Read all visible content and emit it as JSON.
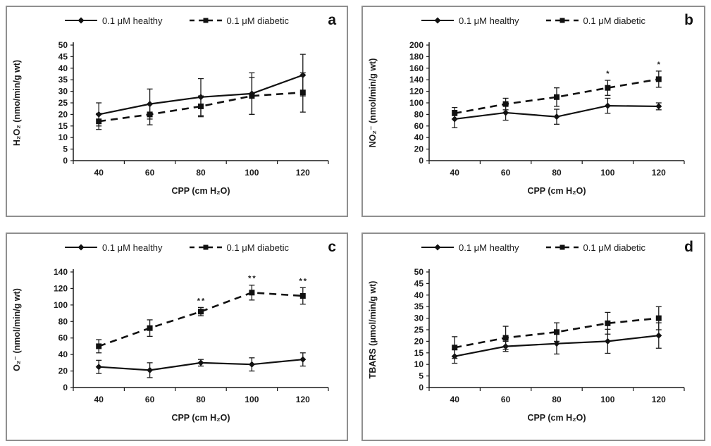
{
  "figure": {
    "legend": {
      "healthy_label": "0.1 μM healthy",
      "diabetic_label": "0.1 μM diabetic"
    },
    "line_color": "#111111",
    "border_color": "#8f8f8f"
  },
  "chart_data": [
    {
      "type": "line",
      "panel_label": "a",
      "xlabel": "CPP (cm H₂O)",
      "ylabel": "H₂O₂ (nmo/min/g wt)",
      "ylim": [
        0,
        50
      ],
      "ytick_step": 5,
      "categories": [
        40,
        60,
        80,
        100,
        120
      ],
      "legend_position": "top-center",
      "grid": false,
      "series": [
        {
          "name": "0.1 μM healthy",
          "line": "solid",
          "marker": "diamond",
          "values": [
            20,
            24.5,
            27.5,
            29,
            37
          ],
          "errors": [
            5,
            6.5,
            8,
            9,
            9
          ],
          "annotations": [
            "",
            "",
            "",
            "",
            ""
          ]
        },
        {
          "name": "0.1 μM diabetic",
          "line": "dashed",
          "marker": "square",
          "values": [
            17,
            20,
            23.5,
            28,
            29.5
          ],
          "errors": [
            3.5,
            4.5,
            4.5,
            8,
            8.5
          ],
          "annotations": [
            "",
            "",
            "",
            "",
            ""
          ]
        }
      ]
    },
    {
      "type": "line",
      "panel_label": "b",
      "xlabel": "CPP (cm H₂O)",
      "ylabel": "NO₂⁻ (nmol/min/g wt)",
      "ylim": [
        0,
        200
      ],
      "ytick_step": 20,
      "categories": [
        40,
        60,
        80,
        100,
        120
      ],
      "legend_position": "top-center",
      "grid": false,
      "series": [
        {
          "name": "0.1 μM healthy",
          "line": "solid",
          "marker": "diamond",
          "values": [
            72,
            83,
            76,
            95,
            94
          ],
          "errors": [
            15,
            13,
            13,
            13,
            6
          ],
          "annotations": [
            "",
            "",
            "",
            "",
            ""
          ]
        },
        {
          "name": "0.1 μM diabetic",
          "line": "dashed",
          "marker": "square",
          "values": [
            82,
            98,
            110,
            126,
            141
          ],
          "errors": [
            10,
            10,
            16,
            13,
            14
          ],
          "annotations": [
            "",
            "",
            "",
            "*",
            "*"
          ]
        }
      ]
    },
    {
      "type": "line",
      "panel_label": "c",
      "xlabel": "CPP (cm H₂O)",
      "ylabel": "O₂⁻ (nmol/min/g wt)",
      "ylim": [
        0,
        140
      ],
      "ytick_step": 20,
      "categories": [
        40,
        60,
        80,
        100,
        120
      ],
      "legend_position": "top-center",
      "grid": false,
      "series": [
        {
          "name": "0.1 μM healthy",
          "line": "solid",
          "marker": "diamond",
          "values": [
            25,
            21,
            30,
            28,
            34
          ],
          "errors": [
            8,
            9,
            4,
            8,
            8
          ],
          "annotations": [
            "",
            "",
            "",
            "",
            ""
          ]
        },
        {
          "name": "0.1 μM diabetic",
          "line": "dashed",
          "marker": "square",
          "values": [
            50,
            72,
            92,
            115,
            111
          ],
          "errors": [
            8,
            10,
            5,
            9,
            10
          ],
          "annotations": [
            "",
            "",
            "**",
            "**",
            "**"
          ]
        }
      ]
    },
    {
      "type": "line",
      "panel_label": "d",
      "xlabel": "CPP (cm H₂O)",
      "ylabel": "TBARS (μmol/min/g wt)",
      "ylim": [
        0,
        50
      ],
      "ytick_step": 5,
      "categories": [
        40,
        60,
        80,
        100,
        120
      ],
      "legend_position": "top-center",
      "grid": false,
      "series": [
        {
          "name": "0.1 μM healthy",
          "line": "solid",
          "marker": "diamond",
          "values": [
            13.5,
            17.8,
            19,
            20,
            22.5
          ],
          "errors": [
            3,
            2.2,
            4.5,
            5.2,
            5.5
          ],
          "annotations": [
            "",
            "",
            "",
            "",
            ""
          ]
        },
        {
          "name": "0.1 μM diabetic",
          "line": "dashed",
          "marker": "square",
          "values": [
            17.3,
            21.5,
            24,
            27.8,
            30
          ],
          "errors": [
            4.7,
            5,
            4,
            4.7,
            5
          ],
          "annotations": [
            "",
            "",
            "",
            "",
            ""
          ]
        }
      ]
    }
  ]
}
